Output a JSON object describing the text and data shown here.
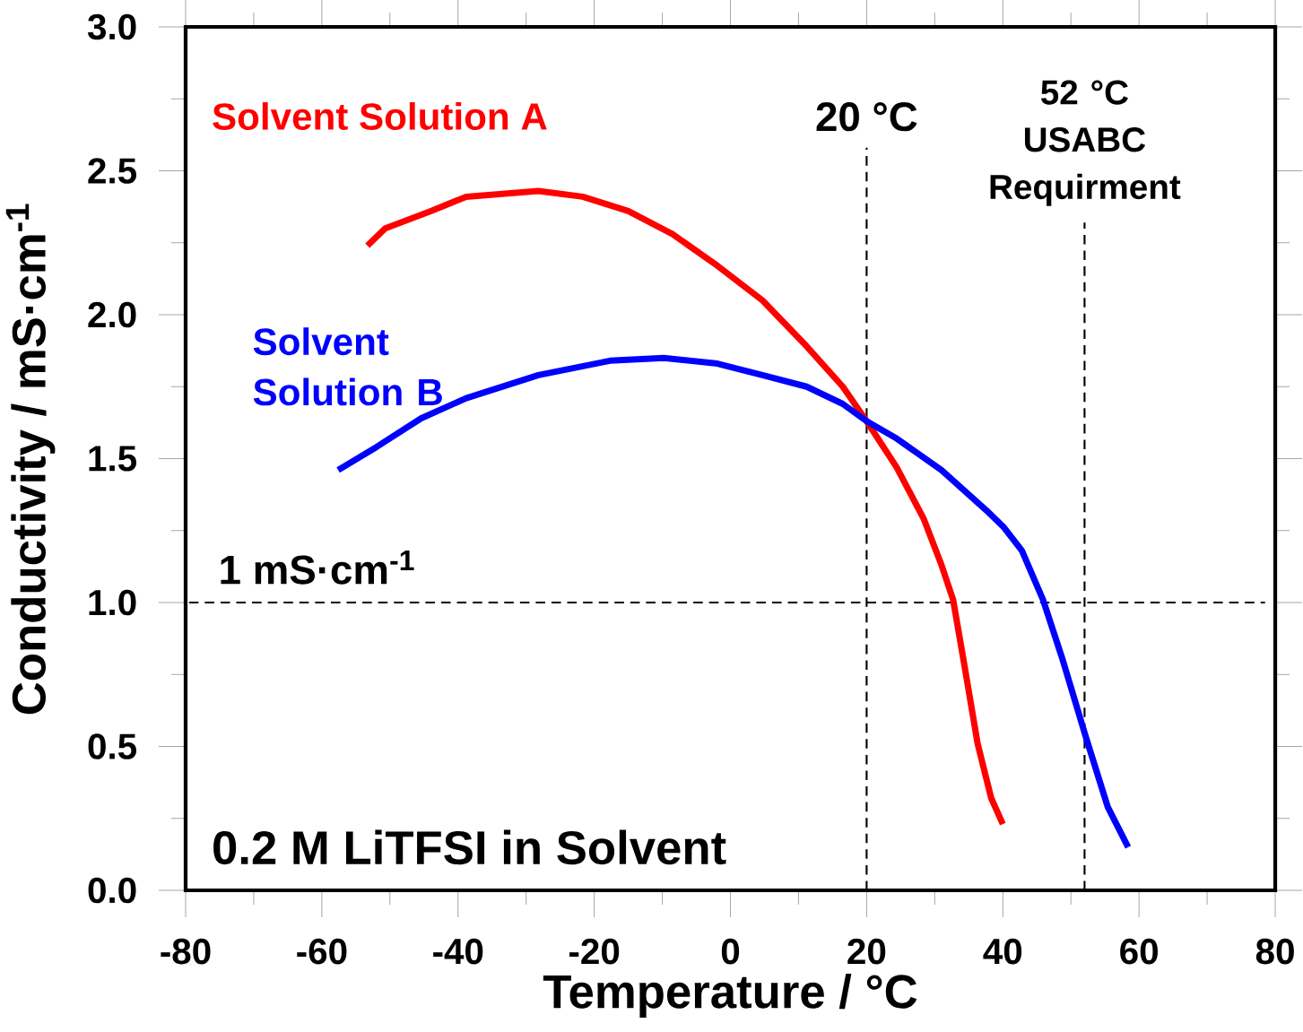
{
  "chart_data": {
    "type": "line",
    "xlabel": "Temperature / °C",
    "ylabel": "Conductivity / mS·cm$^{-1}$",
    "xlim": [
      -80,
      80
    ],
    "ylim": [
      0,
      3.0
    ],
    "xticks": [
      -80,
      -60,
      -40,
      -20,
      0,
      20,
      40,
      60,
      80
    ],
    "yticks": [
      {
        "value": 0,
        "label": "0.0"
      },
      {
        "value": 0.5,
        "label": "0.5"
      },
      {
        "value": 1.0,
        "label": "1.0"
      },
      {
        "value": 1.5,
        "label": "1.5"
      },
      {
        "value": 2.0,
        "label": "2.0"
      },
      {
        "value": 2.5,
        "label": "2.5"
      },
      {
        "value": 3.0,
        "label": "3.0"
      }
    ],
    "series": [
      {
        "name": "Solvent Solution A",
        "color": "#ff0000",
        "x": [
          -53.3,
          -50.7,
          -44,
          -38.8,
          -28.2,
          -21.7,
          -15,
          -8.5,
          -1.9,
          4.7,
          11.2,
          16.5,
          20,
          24.4,
          28.4,
          31,
          32.7,
          34.3,
          36.3,
          38.3,
          40
        ],
        "values": [
          2.24,
          2.3,
          2.36,
          2.41,
          2.43,
          2.41,
          2.36,
          2.28,
          2.17,
          2.05,
          1.89,
          1.75,
          1.63,
          1.47,
          1.29,
          1.13,
          1.01,
          0.79,
          0.51,
          0.32,
          0.23
        ]
      },
      {
        "name": "Solvent Solution B",
        "color": "#0000ff",
        "x": [
          -57.6,
          -52,
          -45.4,
          -38.8,
          -28.2,
          -17.7,
          -9.8,
          -1.9,
          4.7,
          11.2,
          16.5,
          20,
          24.4,
          31,
          37.6,
          40.2,
          42.8,
          45.9,
          48.8,
          52.1,
          55.4,
          58.4
        ],
        "values": [
          1.46,
          1.54,
          1.64,
          1.71,
          1.79,
          1.84,
          1.85,
          1.83,
          1.79,
          1.75,
          1.69,
          1.63,
          1.57,
          1.46,
          1.32,
          1.26,
          1.18,
          1.01,
          0.8,
          0.54,
          0.29,
          0.15
        ]
      }
    ],
    "ref_lines": [
      {
        "axis": "y",
        "value": 1.0,
        "label": "1 mS·cm$^{-1}$",
        "color": "#000000",
        "line_style": "dashed"
      },
      {
        "axis": "x",
        "value": 20,
        "label": "20 °C",
        "color": "#000000",
        "line_style": "dashed"
      },
      {
        "axis": "x",
        "value": 52,
        "label": "52 °C USABC Requirment",
        "color": "#000000",
        "line_style": "dashed"
      }
    ],
    "annotations": [
      "0.2 M LiTFSI in Solvent"
    ]
  }
}
